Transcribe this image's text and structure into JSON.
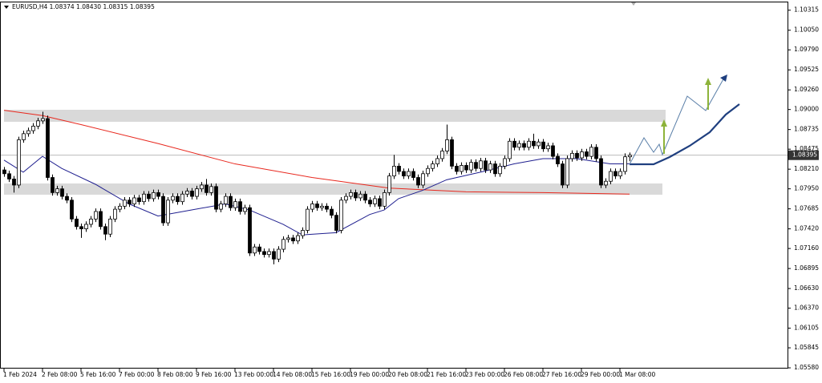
{
  "chart_data": {
    "type": "candlestick",
    "title": "EURUSD,H4  1.08374 1.08430 1.08315 1.08395",
    "categories": [
      "1 Feb 2024",
      null,
      null,
      null,
      null,
      null,
      null,
      null,
      "2 Feb 08:00",
      null,
      null,
      null,
      null,
      null,
      null,
      null,
      "5 Feb 16:00",
      null,
      null,
      null,
      null,
      null,
      null,
      null,
      "7 Feb 00:00",
      null,
      null,
      null,
      null,
      null,
      null,
      null,
      "8 Feb 08:00",
      null,
      null,
      null,
      null,
      null,
      null,
      null,
      "9 Feb 16:00",
      null,
      null,
      null,
      null,
      null,
      null,
      null,
      "13 Feb 00:00",
      null,
      null,
      null,
      null,
      null,
      null,
      null,
      "14 Feb 08:00",
      null,
      null,
      null,
      null,
      null,
      null,
      null,
      "15 Feb 16:00",
      null,
      null,
      null,
      null,
      null,
      null,
      null,
      "19 Feb 00:00",
      null,
      null,
      null,
      null,
      null,
      null,
      null,
      "20 Feb 08:00",
      null,
      null,
      null,
      null,
      null,
      null,
      null,
      "21 Feb 16:00",
      null,
      null,
      null,
      null,
      null,
      null,
      null,
      "23 Feb 00:00",
      null,
      null,
      null,
      null,
      null,
      null,
      null,
      "26 Feb 08:00",
      null,
      null,
      null,
      null,
      null,
      null,
      null,
      "27 Feb 16:00",
      null,
      null,
      null,
      null,
      null,
      null,
      null,
      "29 Feb 00:00",
      null,
      null,
      null,
      null,
      null,
      null,
      null,
      "1 Mar 08:00",
      null,
      null
    ],
    "open": [
      1.082,
      1.0815,
      1.0808,
      1.08,
      1.086,
      1.0868,
      1.0872,
      1.0878,
      1.0885,
      1.0888,
      1.081,
      1.079,
      1.0795,
      1.0785,
      1.078,
      1.0755,
      1.0745,
      1.0742,
      1.0748,
      1.0755,
      1.0765,
      1.0745,
      1.0735,
      1.0755,
      1.0768,
      1.0772,
      1.078,
      1.0775,
      1.0783,
      1.0778,
      1.0788,
      1.0782,
      1.079,
      1.0785,
      1.075,
      1.078,
      1.0785,
      1.0778,
      1.0788,
      1.0792,
      1.0785,
      1.0795,
      1.08,
      1.079,
      1.0798,
      1.0768,
      1.0775,
      1.0785,
      1.077,
      1.0778,
      1.0765,
      1.077,
      1.071,
      1.0718,
      1.0712,
      1.0708,
      1.0712,
      1.0702,
      1.0715,
      1.0728,
      1.073,
      1.0726,
      1.0733,
      1.074,
      1.0768,
      1.0775,
      1.077,
      1.0772,
      1.0768,
      1.076,
      1.074,
      1.078,
      1.0785,
      1.079,
      1.0783,
      1.0788,
      1.078,
      1.0775,
      1.0782,
      1.0772,
      1.079,
      1.0812,
      1.0825,
      1.0818,
      1.0812,
      1.0818,
      1.081,
      1.08,
      1.0815,
      1.0822,
      1.0828,
      1.0835,
      1.0845,
      1.086,
      1.0825,
      1.0818,
      1.0826,
      1.082,
      1.083,
      1.0822,
      1.0832,
      1.082,
      1.0828,
      1.0815,
      1.0825,
      1.0835,
      1.0858,
      1.085,
      1.0855,
      1.085,
      1.0858,
      1.0852,
      1.0857,
      1.0848,
      1.0852,
      1.0838,
      1.0828,
      1.08,
      1.0835,
      1.0842,
      1.0836,
      1.0844,
      1.0838,
      1.085,
      1.0835,
      1.08,
      1.0805,
      1.0818,
      1.0812,
      1.0818,
      1.08374
    ],
    "high": [
      1.0824,
      1.0819,
      1.0812,
      1.0864,
      1.0872,
      1.0876,
      1.0882,
      1.0889,
      1.0897,
      1.0892,
      1.0814,
      1.0799,
      1.0799,
      1.0789,
      1.0784,
      1.0759,
      1.0749,
      1.0752,
      1.0759,
      1.0769,
      1.0769,
      1.0749,
      1.0759,
      1.0772,
      1.0776,
      1.0784,
      1.0784,
      1.0787,
      1.0787,
      1.0792,
      1.0792,
      1.0794,
      1.0794,
      1.0789,
      1.0784,
      1.0789,
      1.0789,
      1.0792,
      1.0796,
      1.0796,
      1.0799,
      1.0804,
      1.0808,
      1.0802,
      1.0802,
      1.0779,
      1.0789,
      1.0789,
      1.0782,
      1.0782,
      1.0774,
      1.0774,
      1.0722,
      1.0722,
      1.0716,
      1.0716,
      1.0716,
      1.0719,
      1.0732,
      1.0734,
      1.0734,
      1.0737,
      1.0744,
      1.0772,
      1.0779,
      1.0779,
      1.0776,
      1.0776,
      1.0772,
      1.0764,
      1.0784,
      1.0789,
      1.0794,
      1.0794,
      1.0792,
      1.0792,
      1.0784,
      1.0786,
      1.0786,
      1.0794,
      1.0816,
      1.084,
      1.0829,
      1.0822,
      1.0822,
      1.0822,
      1.0814,
      1.0819,
      1.0826,
      1.0832,
      1.0839,
      1.0849,
      1.088,
      1.0864,
      1.0829,
      1.083,
      1.083,
      1.0834,
      1.0834,
      1.0836,
      1.0836,
      1.0832,
      1.0832,
      1.0829,
      1.0839,
      1.0862,
      1.0862,
      1.0859,
      1.0859,
      1.0862,
      1.0868,
      1.0861,
      1.0861,
      1.0856,
      1.0856,
      1.0842,
      1.0832,
      1.0839,
      1.0846,
      1.0846,
      1.0848,
      1.0848,
      1.0854,
      1.0854,
      1.0839,
      1.0809,
      1.0822,
      1.0822,
      1.0822,
      1.0842,
      1.0843
    ],
    "low": [
      1.0811,
      1.0804,
      1.079,
      1.0796,
      1.0856,
      1.0864,
      1.0868,
      1.0874,
      1.0881,
      1.0806,
      1.0786,
      1.0786,
      1.0781,
      1.0776,
      1.0751,
      1.0741,
      1.073,
      1.0738,
      1.0744,
      1.0751,
      1.0741,
      1.0727,
      1.0731,
      1.0751,
      1.0764,
      1.0768,
      1.0771,
      1.0771,
      1.0774,
      1.0774,
      1.0778,
      1.0778,
      1.0781,
      1.0746,
      1.0746,
      1.0776,
      1.0774,
      1.0774,
      1.0784,
      1.0781,
      1.0781,
      1.0791,
      1.0786,
      1.0786,
      1.0764,
      1.0764,
      1.0771,
      1.0766,
      1.0766,
      1.0761,
      1.0761,
      1.0706,
      1.0706,
      1.0708,
      1.0704,
      1.0704,
      1.0695,
      1.0698,
      1.0711,
      1.0724,
      1.0722,
      1.0722,
      1.0729,
      1.0736,
      1.0764,
      1.0766,
      1.0766,
      1.0764,
      1.0756,
      1.0736,
      1.0736,
      1.0776,
      1.0781,
      1.0779,
      1.0779,
      1.0776,
      1.0771,
      1.0771,
      1.0768,
      1.0768,
      1.0786,
      1.0808,
      1.0814,
      1.0808,
      1.0808,
      1.0806,
      1.0796,
      1.0796,
      1.0811,
      1.0818,
      1.0824,
      1.0831,
      1.0841,
      1.0821,
      1.0814,
      1.0814,
      1.0816,
      1.0816,
      1.0818,
      1.0818,
      1.0816,
      1.0816,
      1.0811,
      1.0811,
      1.0821,
      1.0831,
      1.0846,
      1.0846,
      1.0846,
      1.0846,
      1.0848,
      1.0848,
      1.0844,
      1.0844,
      1.0834,
      1.0824,
      1.0796,
      1.0796,
      1.0831,
      1.0832,
      1.0832,
      1.0834,
      1.0834,
      1.0831,
      1.0796,
      1.0796,
      1.0801,
      1.0808,
      1.0808,
      1.0814,
      1.08315
    ],
    "close": [
      1.0815,
      1.0808,
      1.08,
      1.086,
      1.0868,
      1.0872,
      1.0878,
      1.0885,
      1.0888,
      1.081,
      1.079,
      1.0795,
      1.0785,
      1.078,
      1.0755,
      1.0745,
      1.0742,
      1.0748,
      1.0755,
      1.0765,
      1.0745,
      1.0735,
      1.0755,
      1.0768,
      1.0772,
      1.078,
      1.0775,
      1.0783,
      1.0778,
      1.0788,
      1.0782,
      1.079,
      1.0785,
      1.075,
      1.078,
      1.0785,
      1.0778,
      1.0788,
      1.0792,
      1.0785,
      1.0795,
      1.08,
      1.079,
      1.0798,
      1.0768,
      1.0775,
      1.0785,
      1.077,
      1.0778,
      1.0765,
      1.077,
      1.071,
      1.0718,
      1.0712,
      1.0708,
      1.0712,
      1.0702,
      1.0715,
      1.0728,
      1.073,
      1.0726,
      1.0733,
      1.074,
      1.0768,
      1.0775,
      1.077,
      1.0772,
      1.0768,
      1.076,
      1.074,
      1.078,
      1.0785,
      1.079,
      1.0783,
      1.0788,
      1.078,
      1.0775,
      1.0782,
      1.0772,
      1.079,
      1.0812,
      1.0825,
      1.0818,
      1.0812,
      1.0818,
      1.081,
      1.08,
      1.0815,
      1.0822,
      1.0828,
      1.0835,
      1.0845,
      1.086,
      1.0825,
      1.0818,
      1.0826,
      1.082,
      1.083,
      1.0822,
      1.0832,
      1.082,
      1.0828,
      1.0815,
      1.0825,
      1.0835,
      1.0858,
      1.085,
      1.0855,
      1.085,
      1.0858,
      1.0852,
      1.0857,
      1.0848,
      1.0852,
      1.0838,
      1.0828,
      1.08,
      1.0835,
      1.0842,
      1.0836,
      1.0844,
      1.0838,
      1.085,
      1.0835,
      1.08,
      1.0805,
      1.0818,
      1.0812,
      1.0818,
      1.08374,
      1.08395
    ],
    "lines": [
      {
        "color": "#e8281e",
        "x": [
          0,
          8,
          16,
          32,
          48,
          64,
          80,
          96,
          112,
          130
        ],
        "values": [
          1.0899,
          1.0892,
          1.088,
          1.0855,
          1.0828,
          1.081,
          1.0796,
          1.0791,
          1.079,
          1.0788
        ]
      },
      {
        "color": "#1f1f8f",
        "x": [
          0,
          4,
          8,
          12,
          19,
          26,
          32,
          39,
          46,
          51,
          58,
          62,
          69,
          76,
          79,
          82,
          87,
          92,
          99,
          106,
          112,
          119,
          126,
          130
        ],
        "values": [
          1.0833,
          1.0817,
          1.0838,
          1.0822,
          1.0801,
          1.0775,
          1.0759,
          1.0767,
          1.0775,
          1.0767,
          1.0748,
          1.0734,
          1.0737,
          1.0761,
          1.0767,
          1.0782,
          1.0793,
          1.0807,
          1.0817,
          1.0828,
          1.0835,
          1.0835,
          1.0828,
          1.0828
        ]
      }
    ],
    "ylim": [
      1.0557,
      1.1045
    ],
    "yticks": [
      {
        "value": 1.10315,
        "label": "1.10315"
      },
      {
        "value": 1.1005,
        "label": "1.10050"
      },
      {
        "value": 1.0979,
        "label": "1.09790"
      },
      {
        "value": 1.09525,
        "label": "1.09525"
      },
      {
        "value": 1.0926,
        "label": "1.09260"
      },
      {
        "value": 1.09,
        "label": "1.09000"
      },
      {
        "value": 1.08735,
        "label": "1.08735"
      },
      {
        "value": 1.08475,
        "label": "1.08475"
      },
      {
        "value": 1.0821,
        "label": "1.08210"
      },
      {
        "value": 1.0795,
        "label": "1.07950"
      },
      {
        "value": 1.07685,
        "label": "1.07685"
      },
      {
        "value": 1.0742,
        "label": "1.07420"
      },
      {
        "value": 1.0716,
        "label": "1.07160"
      },
      {
        "value": 1.06895,
        "label": "1.06895"
      },
      {
        "value": 1.0663,
        "label": "1.06630"
      },
      {
        "value": 1.0637,
        "label": "1.06370"
      },
      {
        "value": 1.06105,
        "label": "1.06105"
      },
      {
        "value": 1.05845,
        "label": "1.05845"
      },
      {
        "value": 1.0558,
        "label": "1.05580"
      }
    ],
    "bull_color": "#ffffff",
    "bear_color": "#000000",
    "grid": false
  }
}
